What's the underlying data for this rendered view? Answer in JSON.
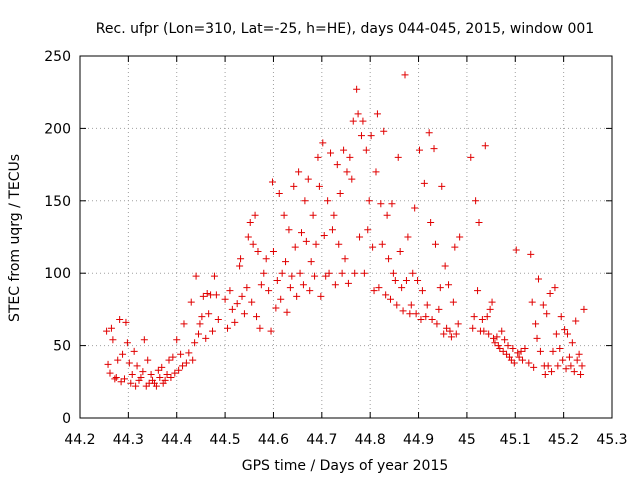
{
  "chart_data": {
    "type": "scatter",
    "title": "Rec. ufpr (Lon=310, Lat=-25, h=HE), days 044-045, 2015, window 001",
    "xlabel": "GPS time / Days of year 2015",
    "ylabel": "STEC from uqrg / TECUs",
    "xlim": [
      44.2,
      45.3
    ],
    "ylim": [
      0,
      250
    ],
    "xticks": [
      "44.2",
      "44.3",
      "44.4",
      "44.5",
      "44.6",
      "44.7",
      "44.8",
      "44.9",
      "45",
      "45.1",
      "45.2",
      "45.3"
    ],
    "yticks": [
      "0",
      "50",
      "100",
      "150",
      "200",
      "250"
    ],
    "grid": true,
    "marker": "+",
    "color": "#e00000",
    "series": [
      {
        "values": [
          [
            44.255,
            60
          ],
          [
            44.258,
            37
          ],
          [
            44.262,
            31
          ],
          [
            44.265,
            62
          ],
          [
            44.268,
            54
          ],
          [
            44.272,
            27
          ],
          [
            44.275,
            28
          ],
          [
            44.278,
            40
          ],
          [
            44.282,
            68
          ],
          [
            44.285,
            25
          ],
          [
            44.288,
            44
          ],
          [
            44.292,
            27
          ],
          [
            44.295,
            66
          ],
          [
            44.298,
            52
          ],
          [
            44.302,
            38
          ],
          [
            44.305,
            24
          ],
          [
            44.308,
            30
          ],
          [
            44.312,
            46
          ],
          [
            44.315,
            22
          ],
          [
            44.318,
            36
          ],
          [
            44.322,
            26
          ],
          [
            44.326,
            28
          ],
          [
            44.33,
            32
          ],
          [
            44.333,
            54
          ],
          [
            44.337,
            22
          ],
          [
            44.34,
            40
          ],
          [
            44.343,
            24
          ],
          [
            44.347,
            30
          ],
          [
            44.35,
            26
          ],
          [
            44.354,
            24
          ],
          [
            44.358,
            22
          ],
          [
            44.362,
            33
          ],
          [
            44.365,
            28
          ],
          [
            44.369,
            35
          ],
          [
            44.372,
            24
          ],
          [
            44.376,
            26
          ],
          [
            44.38,
            30
          ],
          [
            44.384,
            40
          ],
          [
            44.388,
            28
          ],
          [
            44.392,
            42
          ],
          [
            44.396,
            31
          ],
          [
            44.4,
            54
          ],
          [
            44.404,
            33
          ],
          [
            44.408,
            44
          ],
          [
            44.412,
            36
          ],
          [
            44.415,
            65
          ],
          [
            44.42,
            38
          ],
          [
            44.425,
            45
          ],
          [
            44.43,
            80
          ],
          [
            44.433,
            40
          ],
          [
            44.437,
            52
          ],
          [
            44.44,
            98
          ],
          [
            44.445,
            58
          ],
          [
            44.448,
            65
          ],
          [
            44.452,
            70
          ],
          [
            44.455,
            84
          ],
          [
            44.46,
            55
          ],
          [
            44.463,
            86
          ],
          [
            44.466,
            72
          ],
          [
            44.47,
            85
          ],
          [
            44.474,
            60
          ],
          [
            44.478,
            98
          ],
          [
            44.482,
            85
          ],
          [
            44.486,
            68
          ],
          [
            44.5,
            82
          ],
          [
            44.505,
            62
          ],
          [
            44.51,
            88
          ],
          [
            44.515,
            75
          ],
          [
            44.52,
            66
          ],
          [
            44.525,
            79
          ],
          [
            44.53,
            105
          ],
          [
            44.532,
            110
          ],
          [
            44.535,
            84
          ],
          [
            44.54,
            72
          ],
          [
            44.545,
            90
          ],
          [
            44.548,
            125
          ],
          [
            44.552,
            135
          ],
          [
            44.555,
            80
          ],
          [
            44.558,
            120
          ],
          [
            44.562,
            140
          ],
          [
            44.565,
            70
          ],
          [
            44.568,
            115
          ],
          [
            44.572,
            62
          ],
          [
            44.575,
            92
          ],
          [
            44.58,
            100
          ],
          [
            44.585,
            110
          ],
          [
            44.59,
            88
          ],
          [
            44.595,
            60
          ],
          [
            44.598,
            163
          ],
          [
            44.6,
            115
          ],
          [
            44.605,
            76
          ],
          [
            44.608,
            95
          ],
          [
            44.612,
            155
          ],
          [
            44.615,
            82
          ],
          [
            44.618,
            100
          ],
          [
            44.622,
            140
          ],
          [
            44.625,
            108
          ],
          [
            44.628,
            73
          ],
          [
            44.632,
            130
          ],
          [
            44.635,
            90
          ],
          [
            44.638,
            98
          ],
          [
            44.642,
            160
          ],
          [
            44.645,
            118
          ],
          [
            44.648,
            84
          ],
          [
            44.652,
            170
          ],
          [
            44.655,
            100
          ],
          [
            44.658,
            128
          ],
          [
            44.662,
            92
          ],
          [
            44.665,
            150
          ],
          [
            44.668,
            122
          ],
          [
            44.672,
            165
          ],
          [
            44.675,
            88
          ],
          [
            44.678,
            108
          ],
          [
            44.682,
            140
          ],
          [
            44.685,
            98
          ],
          [
            44.688,
            120
          ],
          [
            44.692,
            180
          ],
          [
            44.695,
            160
          ],
          [
            44.698,
            84
          ],
          [
            44.702,
            190
          ],
          [
            44.705,
            126
          ],
          [
            44.708,
            98
          ],
          [
            44.712,
            150
          ],
          [
            44.715,
            100
          ],
          [
            44.718,
            183
          ],
          [
            44.722,
            130
          ],
          [
            44.725,
            140
          ],
          [
            44.728,
            92
          ],
          [
            44.732,
            175
          ],
          [
            44.735,
            120
          ],
          [
            44.738,
            155
          ],
          [
            44.742,
            100
          ],
          [
            44.745,
            185
          ],
          [
            44.748,
            110
          ],
          [
            44.752,
            170
          ],
          [
            44.755,
            93
          ],
          [
            44.758,
            180
          ],
          [
            44.762,
            165
          ],
          [
            44.765,
            205
          ],
          [
            44.768,
            100
          ],
          [
            44.772,
            227
          ],
          [
            44.775,
            210
          ],
          [
            44.778,
            125
          ],
          [
            44.782,
            195
          ],
          [
            44.785,
            205
          ],
          [
            44.788,
            100
          ],
          [
            44.792,
            185
          ],
          [
            44.795,
            130
          ],
          [
            44.798,
            150
          ],
          [
            44.802,
            195
          ],
          [
            44.805,
            118
          ],
          [
            44.808,
            88
          ],
          [
            44.812,
            170
          ],
          [
            44.815,
            210
          ],
          [
            44.818,
            90
          ],
          [
            44.822,
            148
          ],
          [
            44.825,
            120
          ],
          [
            44.828,
            198
          ],
          [
            44.832,
            85
          ],
          [
            44.835,
            140
          ],
          [
            44.838,
            110
          ],
          [
            44.842,
            82
          ],
          [
            44.845,
            148
          ],
          [
            44.848,
            100
          ],
          [
            44.852,
            95
          ],
          [
            44.855,
            78
          ],
          [
            44.858,
            180
          ],
          [
            44.862,
            115
          ],
          [
            44.865,
            90
          ],
          [
            44.868,
            74
          ],
          [
            44.872,
            237
          ],
          [
            44.875,
            95
          ],
          [
            44.878,
            125
          ],
          [
            44.882,
            72
          ],
          [
            44.885,
            78
          ],
          [
            44.888,
            100
          ],
          [
            44.892,
            145
          ],
          [
            44.895,
            72
          ],
          [
            44.898,
            95
          ],
          [
            44.902,
            185
          ],
          [
            44.905,
            68
          ],
          [
            44.908,
            88
          ],
          [
            44.912,
            162
          ],
          [
            44.915,
            70
          ],
          [
            44.918,
            78
          ],
          [
            44.922,
            197
          ],
          [
            44.925,
            135
          ],
          [
            44.928,
            68
          ],
          [
            44.932,
            186
          ],
          [
            44.935,
            120
          ],
          [
            44.938,
            65
          ],
          [
            44.942,
            75
          ],
          [
            44.945,
            90
          ],
          [
            44.948,
            160
          ],
          [
            44.952,
            58
          ],
          [
            44.955,
            105
          ],
          [
            44.958,
            62
          ],
          [
            44.962,
            92
          ],
          [
            44.965,
            60
          ],
          [
            44.968,
            56
          ],
          [
            44.972,
            80
          ],
          [
            44.975,
            118
          ],
          [
            44.978,
            58
          ],
          [
            44.982,
            65
          ],
          [
            44.985,
            125
          ],
          [
            45.008,
            180
          ],
          [
            45.012,
            62
          ],
          [
            45.015,
            70
          ],
          [
            45.018,
            150
          ],
          [
            45.022,
            88
          ],
          [
            45.025,
            135
          ],
          [
            45.028,
            60
          ],
          [
            45.032,
            68
          ],
          [
            45.035,
            60
          ],
          [
            45.038,
            188
          ],
          [
            45.042,
            70
          ],
          [
            45.045,
            58
          ],
          [
            45.048,
            75
          ],
          [
            45.052,
            80
          ],
          [
            45.055,
            55
          ],
          [
            45.058,
            52
          ],
          [
            45.062,
            56
          ],
          [
            45.065,
            50
          ],
          [
            45.068,
            48
          ],
          [
            45.072,
            60
          ],
          [
            45.075,
            46
          ],
          [
            45.078,
            54
          ],
          [
            45.082,
            44
          ],
          [
            45.085,
            50
          ],
          [
            45.088,
            42
          ],
          [
            45.092,
            40
          ],
          [
            45.095,
            48
          ],
          [
            45.098,
            38
          ],
          [
            45.102,
            116
          ],
          [
            45.105,
            45
          ],
          [
            45.108,
            42
          ],
          [
            45.112,
            46
          ],
          [
            45.115,
            40
          ],
          [
            45.12,
            48
          ],
          [
            45.128,
            38
          ],
          [
            45.132,
            113
          ],
          [
            45.135,
            80
          ],
          [
            45.138,
            35
          ],
          [
            45.142,
            65
          ],
          [
            45.145,
            55
          ],
          [
            45.148,
            96
          ],
          [
            45.152,
            46
          ],
          [
            45.158,
            78
          ],
          [
            45.16,
            36
          ],
          [
            45.162,
            30
          ],
          [
            45.165,
            72
          ],
          [
            45.168,
            36
          ],
          [
            45.172,
            86
          ],
          [
            45.175,
            32
          ],
          [
            45.178,
            46
          ],
          [
            45.182,
            90
          ],
          [
            45.185,
            58
          ],
          [
            45.188,
            36
          ],
          [
            45.192,
            48
          ],
          [
            45.195,
            70
          ],
          [
            45.198,
            40
          ],
          [
            45.202,
            61
          ],
          [
            45.205,
            34
          ],
          [
            45.208,
            58
          ],
          [
            45.212,
            42
          ],
          [
            45.215,
            36
          ],
          [
            45.218,
            52
          ],
          [
            45.222,
            32
          ],
          [
            45.225,
            67
          ],
          [
            45.228,
            40
          ],
          [
            45.232,
            44
          ],
          [
            45.235,
            30
          ],
          [
            45.238,
            36
          ],
          [
            45.242,
            75
          ]
        ]
      }
    ]
  }
}
